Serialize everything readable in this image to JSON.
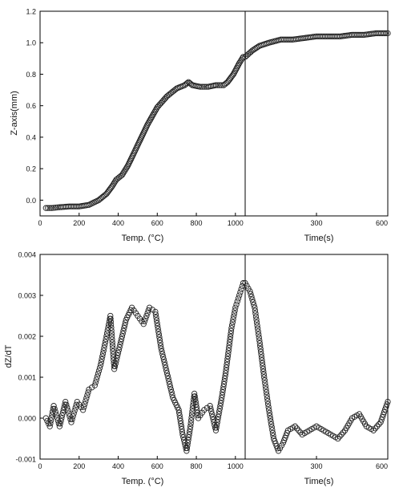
{
  "chart_data": [
    {
      "type": "scatter",
      "title": "",
      "ylabel": "Z-axis(mm)",
      "grid": false,
      "legend": "none",
      "marker": "open-circle",
      "left_axis": {
        "xlabel": "Temp. (°C)",
        "xlim": [
          0,
          1050
        ],
        "xticks": [
          0,
          200,
          400,
          600,
          800,
          1000
        ],
        "xtick_labels": [
          "0",
          "200",
          "400",
          "600",
          "800",
          "1000"
        ]
      },
      "right_axis": {
        "xlabel": "Time(s)",
        "xlim": [
          0,
          600
        ],
        "xticks": [
          300,
          600
        ],
        "xtick_labels": [
          "300",
          "600"
        ]
      },
      "ylim": [
        -0.1,
        1.2
      ],
      "yticks": [
        0.0,
        0.2,
        0.4,
        0.6,
        0.8,
        1.0,
        1.2
      ],
      "ytick_labels": [
        "0.0",
        "0.2",
        "0.4",
        "0.6",
        "0.8",
        "1.0",
        "1.2"
      ],
      "series": [
        {
          "axis": "temperature",
          "x": [
            30,
            60,
            100,
            150,
            200,
            250,
            300,
            340,
            370,
            390,
            420,
            450,
            500,
            550,
            600,
            650,
            700,
            740,
            760,
            780,
            820,
            860,
            900,
            940,
            960,
            990,
            1020,
            1040
          ],
          "values": [
            -0.05,
            -0.05,
            -0.045,
            -0.04,
            -0.04,
            -0.03,
            0.0,
            0.04,
            0.09,
            0.13,
            0.16,
            0.22,
            0.35,
            0.48,
            0.59,
            0.66,
            0.71,
            0.73,
            0.75,
            0.73,
            0.72,
            0.72,
            0.73,
            0.73,
            0.75,
            0.8,
            0.87,
            0.91
          ]
        },
        {
          "axis": "time",
          "x": [
            0,
            30,
            60,
            100,
            150,
            200,
            250,
            300,
            350,
            400,
            450,
            500,
            550,
            600
          ],
          "values": [
            0.91,
            0.95,
            0.98,
            1.0,
            1.02,
            1.02,
            1.03,
            1.04,
            1.04,
            1.04,
            1.05,
            1.05,
            1.06,
            1.06
          ]
        }
      ]
    },
    {
      "type": "scatter",
      "title": "",
      "ylabel": "dZ/dT",
      "grid": false,
      "legend": "none",
      "marker": "open-circle",
      "left_axis": {
        "xlabel": "Temp. (°C)",
        "xlim": [
          0,
          1050
        ],
        "xticks": [
          0,
          200,
          400,
          600,
          800,
          1000
        ],
        "xtick_labels": [
          "0",
          "200",
          "400",
          "600",
          "800",
          "1000"
        ]
      },
      "right_axis": {
        "xlabel": "Time(s)",
        "xlim": [
          0,
          600
        ],
        "xticks": [
          300,
          600
        ],
        "xtick_labels": [
          "300",
          "600"
        ]
      },
      "ylim": [
        -0.001,
        0.004
      ],
      "yticks": [
        -0.001,
        0.0,
        0.001,
        0.002,
        0.003,
        0.004
      ],
      "ytick_labels": [
        "-0.001",
        "0.000",
        "0.001",
        "0.002",
        "0.003",
        "0.004"
      ],
      "series": [
        {
          "axis": "temperature",
          "x": [
            30,
            50,
            70,
            100,
            130,
            160,
            190,
            220,
            250,
            280,
            310,
            340,
            360,
            380,
            410,
            440,
            470,
            500,
            530,
            560,
            590,
            620,
            650,
            680,
            710,
            730,
            750,
            770,
            790,
            810,
            840,
            870,
            900,
            930,
            950,
            980,
            1000,
            1020,
            1040
          ],
          "values": [
            0.0,
            -0.0002,
            0.0003,
            -0.0002,
            0.0004,
            -0.0001,
            0.0004,
            0.0002,
            0.0007,
            0.0008,
            0.0013,
            0.002,
            0.0025,
            0.0012,
            0.0018,
            0.0024,
            0.0027,
            0.0025,
            0.0023,
            0.0027,
            0.0026,
            0.0017,
            0.0011,
            0.0005,
            0.0002,
            -0.0004,
            -0.0008,
            -0.0002,
            0.0006,
            0.0,
            0.0002,
            0.0003,
            -0.0003,
            0.0005,
            0.0011,
            0.0022,
            0.0027,
            0.003,
            0.0033
          ]
        },
        {
          "axis": "time",
          "x": [
            0,
            20,
            40,
            60,
            80,
            100,
            120,
            140,
            160,
            180,
            210,
            240,
            270,
            300,
            330,
            360,
            390,
            420,
            450,
            480,
            510,
            540,
            570,
            600
          ],
          "values": [
            0.0033,
            0.0031,
            0.0027,
            0.0019,
            0.001,
            0.0002,
            -0.0005,
            -0.0008,
            -0.0006,
            -0.0003,
            -0.0002,
            -0.0004,
            -0.0003,
            -0.0002,
            -0.0003,
            -0.0004,
            -0.0005,
            -0.0003,
            0.0,
            0.0001,
            -0.0002,
            -0.0003,
            -0.0001,
            0.0004
          ]
        }
      ]
    }
  ]
}
